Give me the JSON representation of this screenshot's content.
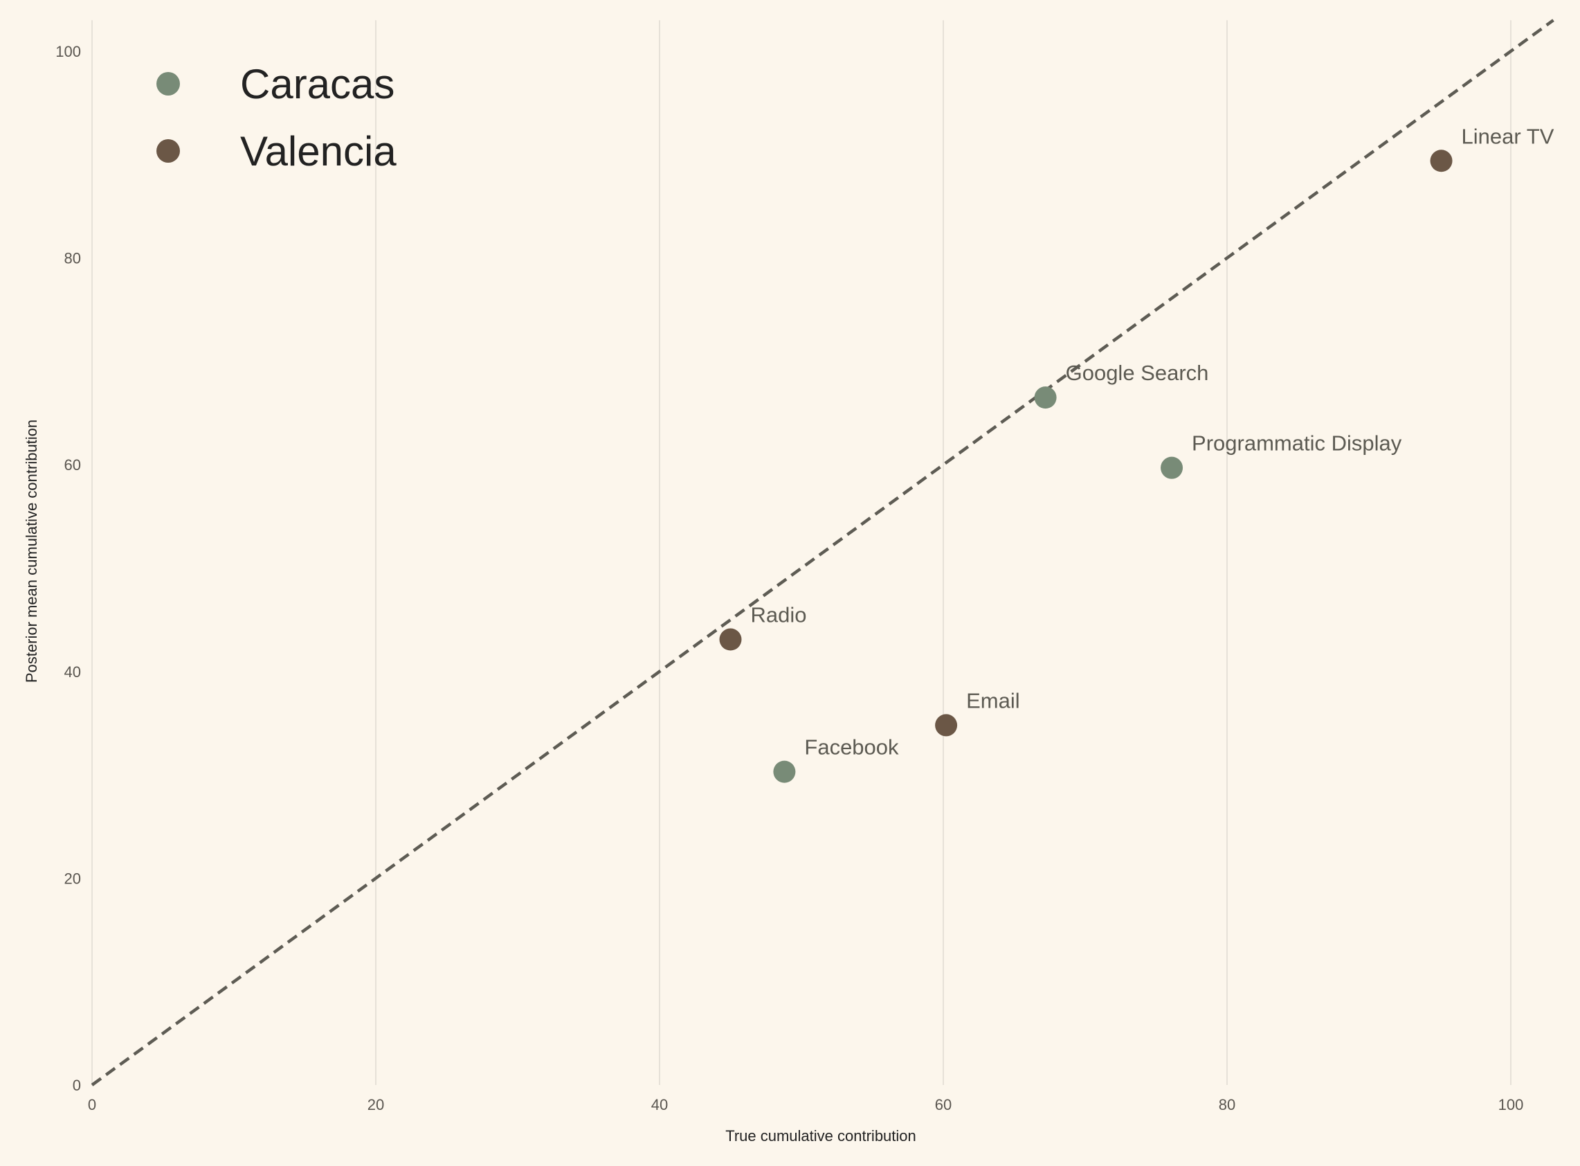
{
  "chart_data": {
    "type": "scatter",
    "title": "",
    "xlabel": "True cumulative contribution",
    "ylabel": "Posterior mean cumulative contribution",
    "xlim": [
      0,
      103
    ],
    "ylim": [
      0,
      103
    ],
    "xticks": [
      "0",
      "20",
      "40",
      "60",
      "80",
      "100"
    ],
    "yticks": [
      "0",
      "20",
      "40",
      "60",
      "80",
      "100"
    ],
    "grid": "vertical",
    "reference_line": "y = x (dashed)",
    "legend_position": "top-left",
    "series": [
      {
        "name": "Caracas",
        "color": "#788b77",
        "points": [
          {
            "label": "Google Search",
            "x": 67.2,
            "y": 66.5
          },
          {
            "label": "Programmatic Display",
            "x": 76.1,
            "y": 59.7
          },
          {
            "label": "Facebook",
            "x": 48.8,
            "y": 30.3
          }
        ]
      },
      {
        "name": "Valencia",
        "color": "#6b5746",
        "points": [
          {
            "label": "Linear TV",
            "x": 95.1,
            "y": 89.4
          },
          {
            "label": "Radio",
            "x": 45.0,
            "y": 43.1
          },
          {
            "label": "Email",
            "x": 60.2,
            "y": 34.8
          }
        ]
      }
    ]
  }
}
